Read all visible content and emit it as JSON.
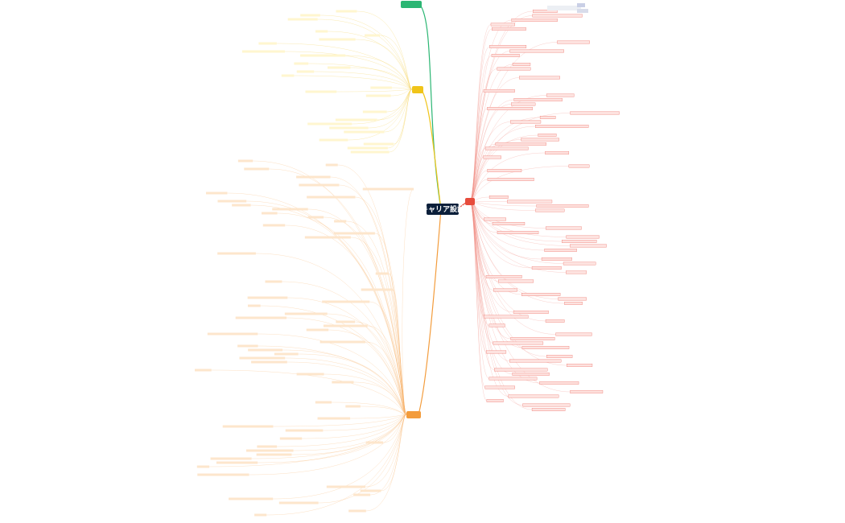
{
  "center": {
    "label": "キャリア設計"
  }
}
